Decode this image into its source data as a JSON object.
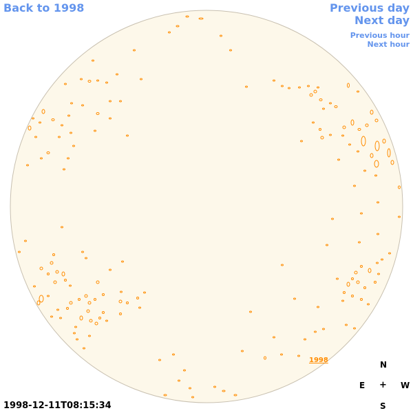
{
  "nav": {
    "back": "Back to 1998",
    "previous_day": "Previous day",
    "next_day": "Next day",
    "previous_hour": "Previous hour",
    "next_hour": "Next hour"
  },
  "timestamp": "1998-12-11T08:15:34",
  "year_label": "1998",
  "compass": {
    "n": "N",
    "e": "E",
    "center": "+",
    "w": "W",
    "s": "S"
  },
  "colors": {
    "disk_fill": "#fdf8ea",
    "disk_outline": "#c8c0b0",
    "contour": "#ff8c00",
    "link": "#6495ed"
  }
}
